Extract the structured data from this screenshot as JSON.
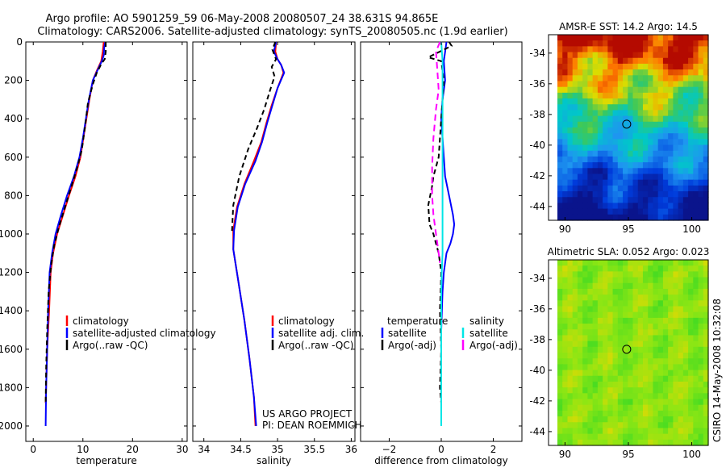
{
  "title": {
    "line1": "Argo profile: AO 5901259_59 06-May-2008 20080507_24 38.631S 94.865E",
    "line2": "Climatology: CARS2006. Satellite-adjusted climatology: synTS_20080505.nc (1.9d earlier)"
  },
  "side_label": "CSIRO 14-May-2008 10:32:08",
  "project_label": {
    "line1": "US ARGO PROJECT",
    "line2": "PI: DEAN ROEMMICH"
  },
  "colors": {
    "climatology": "#ff0000",
    "satellite": "#0000ff",
    "argo": "#000000",
    "sat_salinity": "#00e6e6",
    "argo_adj_salinity": "#ff00ff"
  },
  "chart_data": [
    {
      "id": "temperature",
      "type": "line",
      "xlabel": "temperature",
      "ylabel": "",
      "xlim": [
        -1.5,
        31
      ],
      "ylim": [
        2080,
        0
      ],
      "xticks": [
        0,
        10,
        20,
        30
      ],
      "yticks": [
        0,
        200,
        400,
        600,
        800,
        1000,
        1200,
        1400,
        1600,
        1800,
        2000
      ],
      "legend": [
        "climatology",
        "satellite-adjusted climatology",
        "Argo(..raw -QC)"
      ],
      "series": [
        {
          "name": "climatology",
          "color": "#ff0000",
          "dash": "",
          "x": [
            14.2,
            14.0,
            13.7,
            12.8,
            12.0,
            11.3,
            10.7,
            10.1,
            9.5,
            8.5,
            7.2,
            6.0,
            4.8,
            4.0,
            3.5,
            3.2,
            3.0,
            2.8,
            2.6,
            2.5
          ],
          "y": [
            0,
            50,
            100,
            150,
            200,
            300,
            400,
            500,
            600,
            700,
            800,
            900,
            1000,
            1100,
            1200,
            1400,
            1500,
            1600,
            1800,
            1880
          ]
        },
        {
          "name": "satellite-adjusted climatology",
          "color": "#0000ff",
          "dash": "",
          "x": [
            14.5,
            14.3,
            14.2,
            13.8,
            12.9,
            12.0,
            11.2,
            10.6,
            10.0,
            9.3,
            8.2,
            6.8,
            5.6,
            4.5,
            3.8,
            3.3,
            3.0,
            2.8,
            2.6,
            2.5
          ],
          "y": [
            0,
            30,
            70,
            100,
            150,
            200,
            300,
            400,
            500,
            600,
            700,
            800,
            900,
            1000,
            1100,
            1200,
            1400,
            1600,
            1800,
            2000
          ]
        },
        {
          "name": "Argo(..raw -QC)",
          "color": "#000000",
          "dash": "6,4",
          "x": [
            14.6,
            14.6,
            14.4,
            13.8,
            12.8,
            12.0,
            11.0,
            10.5,
            9.8,
            8.9,
            7.6,
            6.4,
            5.2,
            4.2,
            3.6,
            3.1,
            2.8,
            2.6,
            2.5
          ],
          "y": [
            0,
            50,
            90,
            110,
            160,
            220,
            320,
            430,
            560,
            650,
            760,
            860,
            960,
            1060,
            1160,
            1300,
            1500,
            1700,
            1880
          ]
        }
      ]
    },
    {
      "id": "salinity",
      "type": "line",
      "xlabel": "salinity",
      "ylabel": "",
      "xlim": [
        33.85,
        36.05
      ],
      "ylim": [
        2080,
        0
      ],
      "xticks": [
        34,
        34.5,
        35,
        35.5,
        36
      ],
      "xticklabels": [
        "34",
        "34.5",
        "35",
        "35.5",
        "36"
      ],
      "legend": [
        "climatology",
        "satellite adj. clim.",
        "Argo(..raw -QC)"
      ],
      "series": [
        {
          "name": "climatology",
          "color": "#ff0000",
          "dash": "",
          "x": [
            34.98,
            34.97,
            35.0,
            35.05,
            35.08,
            35.0,
            34.92,
            34.85,
            34.78,
            34.68,
            34.55,
            34.45,
            34.4,
            34.4,
            34.47,
            34.55,
            34.62,
            34.68,
            34.7
          ],
          "y": [
            0,
            50,
            90,
            120,
            160,
            240,
            330,
            420,
            520,
            620,
            740,
            860,
            980,
            1080,
            1250,
            1450,
            1650,
            1850,
            2000
          ]
        },
        {
          "name": "satellite adj. clim.",
          "color": "#0000ff",
          "dash": "",
          "x": [
            34.98,
            34.95,
            35.0,
            35.05,
            35.09,
            35.0,
            34.93,
            34.86,
            34.79,
            34.7,
            34.56,
            34.46,
            34.41,
            34.4,
            34.47,
            34.55,
            34.62,
            34.68,
            34.71
          ],
          "y": [
            0,
            50,
            90,
            120,
            160,
            240,
            330,
            420,
            520,
            620,
            740,
            860,
            980,
            1080,
            1250,
            1450,
            1650,
            1850,
            2000
          ]
        },
        {
          "name": "Argo(..raw -QC)",
          "color": "#000000",
          "dash": "6,4",
          "x": [
            34.97,
            34.93,
            34.98,
            34.92,
            34.96,
            34.9,
            34.82,
            34.72,
            34.6,
            34.48,
            34.4,
            34.38
          ],
          "y": [
            0,
            40,
            90,
            130,
            180,
            250,
            350,
            450,
            560,
            700,
            850,
            1000
          ]
        }
      ]
    },
    {
      "id": "difference",
      "type": "line",
      "xlabel": "difference from climatology",
      "ylabel": "",
      "xlim": [
        -3.1,
        3.1
      ],
      "ylim": [
        2080,
        0
      ],
      "xticks": [
        -2,
        0,
        2
      ],
      "xticklabels": [
        "−2",
        "0",
        "2"
      ],
      "legend": [
        "temperature",
        "satellite",
        "Argo(-adj)",
        "salinity",
        "satellite",
        "Argo(-adj)"
      ],
      "series": [
        {
          "name": "satellite",
          "color": "#0000ff",
          "dash": "",
          "x": [
            0.2,
            0.1,
            0.15,
            0.05,
            0.0,
            0.05,
            0.1,
            0.15,
            0.3,
            0.45,
            0.5,
            0.45,
            0.35,
            0.2,
            0.1,
            0.05,
            0.0,
            0.0,
            0.0
          ],
          "y": [
            0,
            100,
            200,
            300,
            400,
            500,
            600,
            700,
            800,
            900,
            950,
            1000,
            1050,
            1100,
            1200,
            1300,
            1500,
            1700,
            2000
          ]
        },
        {
          "name": "Argo(-adj)",
          "color": "#000000",
          "dash": "6,4",
          "x": [
            0.3,
            0.4,
            -0.5,
            0.0,
            0.1,
            0.0,
            -0.1,
            -0.3,
            -0.35,
            -0.5,
            -0.45,
            -0.3,
            -0.2,
            -0.1,
            0.0,
            -0.05,
            0.0,
            -0.05,
            0.0
          ],
          "y": [
            0,
            20,
            80,
            100,
            200,
            400,
            600,
            700,
            750,
            850,
            950,
            1000,
            1050,
            1100,
            1200,
            1400,
            1600,
            1800,
            1880
          ]
        },
        {
          "name": "satellite",
          "color": "#00e6e6",
          "dash": "",
          "x": [
            0.0,
            0.05,
            0.05,
            0.05,
            0.05,
            0.05,
            0.05,
            0.05,
            0.02,
            0.0,
            0.0,
            0.0,
            0.0
          ],
          "y": [
            0,
            100,
            300,
            500,
            700,
            900,
            1000,
            1100,
            1200,
            1300,
            1500,
            1800,
            2000
          ]
        },
        {
          "name": "Argo(-adj)",
          "color": "#ff00ff",
          "dash": "8,5",
          "x": [
            -0.05,
            -0.2,
            -0.15,
            -0.1,
            -0.2,
            -0.3,
            -0.35,
            -0.35,
            -0.3,
            -0.2,
            -0.1,
            -0.05
          ],
          "y": [
            0,
            50,
            150,
            250,
            350,
            500,
            650,
            800,
            900,
            1000,
            1100,
            1150
          ]
        }
      ]
    },
    {
      "id": "sst_map",
      "type": "heatmap",
      "title": "AMSR-E SST: 14.2  Argo: 14.5",
      "xlim": [
        88.7,
        101.3
      ],
      "ylim": [
        -44.9,
        -32.8
      ],
      "xticks": [
        90,
        95,
        100
      ],
      "yticks": [
        -34,
        -36,
        -38,
        -40,
        -42,
        -44
      ],
      "marker": {
        "lon": 94.865,
        "lat": -38.631
      }
    },
    {
      "id": "sla_map",
      "type": "heatmap",
      "title": "Altimetric SLA: 0.052  Argo: 0.023",
      "xlim": [
        88.7,
        101.3
      ],
      "ylim": [
        -44.9,
        -32.8
      ],
      "xticks": [
        90,
        95,
        100
      ],
      "yticks": [
        -34,
        -36,
        -38,
        -40,
        -42,
        -44
      ],
      "marker": {
        "lon": 94.865,
        "lat": -38.631
      }
    }
  ]
}
